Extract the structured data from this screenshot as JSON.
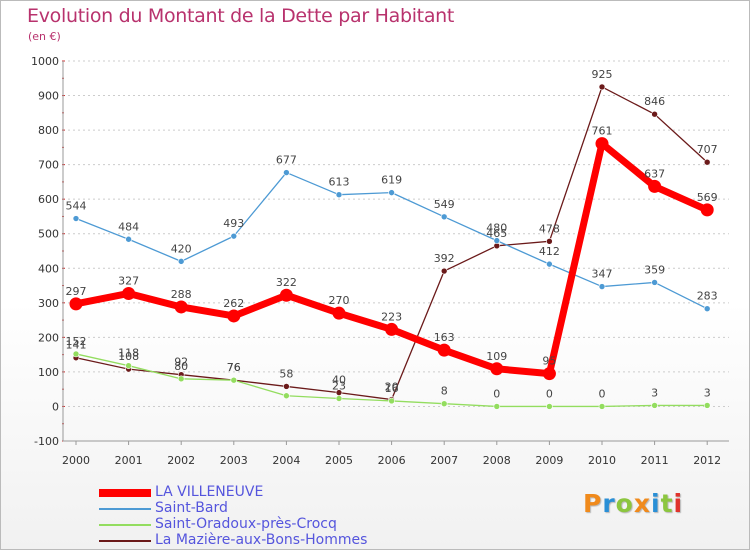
{
  "header": {
    "title": "Evolution du Montant de la Dette par Habitant",
    "unit": "(en €)"
  },
  "logo": {
    "text": "Proxiti",
    "letters": [
      "P",
      "r",
      "o",
      "x",
      "i",
      "t",
      "i"
    ],
    "colors": [
      "#f08a1c",
      "#2a8fd6",
      "#8cc63f",
      "#f08a1c",
      "#2a8fd6",
      "#8cc63f",
      "#e0342c"
    ]
  },
  "chart_data": {
    "type": "line",
    "title": "Evolution du Montant de la Dette par Habitant",
    "subtitle": "(en €)",
    "xlabel": "",
    "ylabel": "",
    "categories": [
      "2000",
      "2001",
      "2002",
      "2003",
      "2004",
      "2005",
      "2006",
      "2007",
      "2008",
      "2009",
      "2010",
      "2011",
      "2012"
    ],
    "ylim": [
      -100,
      1000
    ],
    "yticks": [
      -100,
      0,
      100,
      200,
      300,
      400,
      500,
      600,
      700,
      800,
      900,
      1000
    ],
    "grid": "horizontal dashed",
    "legend": "bottom-left",
    "series": [
      {
        "name": "LA VILLENEUVE",
        "values": [
          297,
          327,
          288,
          262,
          322,
          270,
          223,
          163,
          109,
          95,
          761,
          637,
          569
        ],
        "color": "#ff0000",
        "style": "bold"
      },
      {
        "name": "Saint-Bard",
        "values": [
          544,
          484,
          420,
          493,
          677,
          613,
          619,
          549,
          480,
          412,
          347,
          359,
          283
        ],
        "color": "#4d9ad4"
      },
      {
        "name": "Saint-Oradoux-près-Crocq",
        "values": [
          152,
          118,
          80,
          76,
          31,
          23,
          16,
          8,
          0,
          0,
          0,
          3,
          3
        ],
        "color": "#93dd5f"
      },
      {
        "name": "La Mazière-aux-Bons-Hommes",
        "values": [
          141,
          108,
          92,
          76,
          58,
          40,
          20,
          392,
          465,
          478,
          925,
          846,
          707
        ],
        "color": "#6b1a1a"
      }
    ],
    "data_labels": {
      "LA VILLENEUVE": [
        "297",
        "327",
        "288",
        "262",
        "322",
        "270",
        "223",
        "163",
        "109",
        "95",
        "761",
        "637",
        "569"
      ],
      "Saint-Bard": [
        "544",
        "484",
        "420",
        "493",
        "677",
        "613",
        "619",
        "549",
        "480",
        "412",
        "347",
        "359",
        "283"
      ],
      "Saint-Oradoux-près-Crocq": [
        "152",
        "118",
        "80",
        "76",
        "",
        "23",
        "16",
        "8",
        "0",
        "0",
        "0",
        "3",
        "3"
      ],
      "La Mazière-aux-Bons-Hommes": [
        "141",
        "108",
        "92",
        "76",
        "58",
        "40",
        "20",
        "392",
        "465",
        "478",
        "925",
        "846",
        "707"
      ]
    }
  }
}
